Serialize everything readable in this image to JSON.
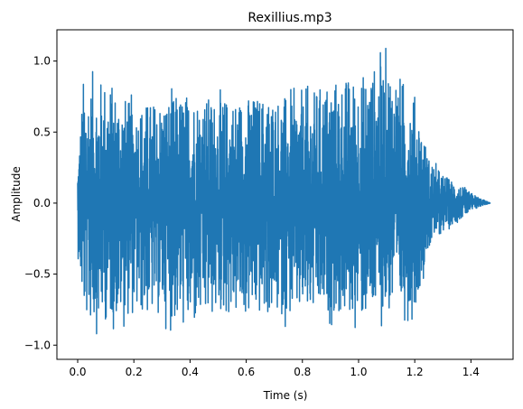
{
  "chart_data": {
    "type": "line",
    "title": "Rexillius.mp3",
    "xlabel": "Time (s)",
    "ylabel": "Amplitude",
    "xlim": [
      -0.074,
      1.55
    ],
    "ylim": [
      -1.1,
      1.22
    ],
    "xticks": [
      0.0,
      0.2,
      0.4,
      0.6,
      0.8,
      1.0,
      1.2,
      1.4
    ],
    "xtick_labels": [
      "0.0",
      "0.2",
      "0.4",
      "0.6",
      "0.8",
      "1.0",
      "1.2",
      "1.4"
    ],
    "yticks": [
      -1.0,
      -0.5,
      0.0,
      0.5,
      1.0
    ],
    "ytick_labels": [
      "−1.0",
      "−0.5",
      "0.0",
      "0.5",
      "1.0"
    ],
    "grid": false,
    "series_color": "#1f77b4",
    "series": [
      {
        "duration": 1.47,
        "envelope": {
          "x": [
            0.0,
            0.02,
            0.05,
            0.1,
            0.2,
            0.3,
            0.4,
            0.5,
            0.6,
            0.7,
            0.8,
            0.9,
            1.0,
            1.1,
            1.2,
            1.25,
            1.3,
            1.35,
            1.4,
            1.44,
            1.47
          ],
          "upper": [
            0.3,
            0.95,
            0.93,
            0.96,
            0.75,
            0.8,
            0.85,
            0.8,
            0.82,
            0.83,
            0.8,
            0.95,
            0.97,
            1.11,
            0.83,
            0.35,
            0.22,
            0.15,
            0.08,
            0.03,
            0.0
          ],
          "lower": [
            -0.35,
            -0.87,
            -0.93,
            -0.91,
            -0.86,
            -0.87,
            -0.99,
            -0.86,
            -0.88,
            -0.87,
            -0.88,
            -0.86,
            -0.9,
            -0.86,
            -0.82,
            -0.35,
            -0.22,
            -0.14,
            -0.07,
            -0.02,
            0.0
          ]
        }
      }
    ]
  }
}
